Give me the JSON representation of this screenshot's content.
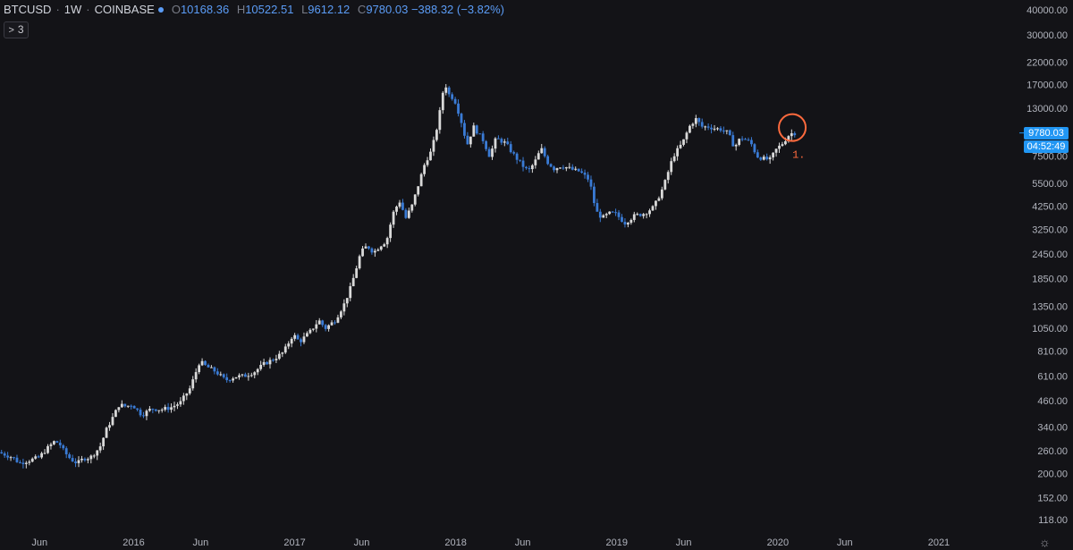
{
  "legend": {
    "symbol": "BTCUSD",
    "interval": "1W",
    "exchange": "COINBASE",
    "open_label": "O",
    "open": "10168.36",
    "high_label": "H",
    "high": "10522.51",
    "low_label": "L",
    "low": "9612.12",
    "close_label": "C",
    "close": "9780.03",
    "change": "−388.32 (−3.82%)"
  },
  "indicators_toggle": {
    "chevron": ">",
    "count": "3"
  },
  "price_tag": {
    "price": "9780.03",
    "countdown": "04:52:49"
  },
  "annotation": {
    "label": "1."
  },
  "colors": {
    "background": "#131317",
    "up_candle": "#d9d9d9",
    "down_candle": "#3a7bd5",
    "price_tag": "#2196f3",
    "annotation": "#ff6a3d"
  },
  "chart_data": {
    "type": "candlestick",
    "interval": "weekly",
    "scale": "log",
    "ylim": [
      110,
      42000
    ],
    "y_ticks": [
      "40000.00",
      "30000.00",
      "22000.00",
      "17000.00",
      "13000.00",
      "10000.00",
      "7500.00",
      "5500.00",
      "4250.00",
      "3250.00",
      "2450.00",
      "1850.00",
      "1350.00",
      "1050.00",
      "810.00",
      "610.00",
      "460.00",
      "340.00",
      "260.00",
      "200.00",
      "152.00",
      "118.00"
    ],
    "x_ticks": [
      {
        "label": "Jun",
        "t": 2015.416
      },
      {
        "label": "2016",
        "t": 2016.0
      },
      {
        "label": "Jun",
        "t": 2016.416
      },
      {
        "label": "2017",
        "t": 2017.0
      },
      {
        "label": "Jun",
        "t": 2017.416
      },
      {
        "label": "2018",
        "t": 2018.0
      },
      {
        "label": "Jun",
        "t": 2018.416
      },
      {
        "label": "2019",
        "t": 2019.0
      },
      {
        "label": "Jun",
        "t": 2019.416
      },
      {
        "label": "2020",
        "t": 2020.0
      },
      {
        "label": "Jun",
        "t": 2020.416
      },
      {
        "label": "2021",
        "t": 2021.0
      }
    ],
    "x_range": [
      2015.17,
      2021.5
    ],
    "price_path": [
      [
        2015.17,
        255
      ],
      [
        2015.26,
        240
      ],
      [
        2015.3,
        225
      ],
      [
        2015.38,
        235
      ],
      [
        2015.42,
        240
      ],
      [
        2015.48,
        270
      ],
      [
        2015.52,
        290
      ],
      [
        2015.55,
        280
      ],
      [
        2015.58,
        255
      ],
      [
        2015.62,
        235
      ],
      [
        2015.66,
        225
      ],
      [
        2015.7,
        238
      ],
      [
        2015.74,
        240
      ],
      [
        2015.8,
        270
      ],
      [
        2015.84,
        330
      ],
      [
        2015.88,
        380
      ],
      [
        2015.92,
        440
      ],
      [
        2015.96,
        430
      ],
      [
        2016.0,
        440
      ],
      [
        2016.06,
        390
      ],
      [
        2016.12,
        420
      ],
      [
        2016.18,
        415
      ],
      [
        2016.24,
        425
      ],
      [
        2016.3,
        450
      ],
      [
        2016.36,
        530
      ],
      [
        2016.42,
        720
      ],
      [
        2016.46,
        680
      ],
      [
        2016.52,
        640
      ],
      [
        2016.58,
        580
      ],
      [
        2016.64,
        605
      ],
      [
        2016.7,
        610
      ],
      [
        2016.76,
        640
      ],
      [
        2016.82,
        700
      ],
      [
        2016.88,
        740
      ],
      [
        2016.94,
        800
      ],
      [
        2017.0,
        980
      ],
      [
        2017.04,
        900
      ],
      [
        2017.1,
        1000
      ],
      [
        2017.16,
        1150
      ],
      [
        2017.2,
        1050
      ],
      [
        2017.26,
        1150
      ],
      [
        2017.32,
        1400
      ],
      [
        2017.36,
        1700
      ],
      [
        2017.42,
        2500
      ],
      [
        2017.46,
        2700
      ],
      [
        2017.5,
        2500
      ],
      [
        2017.54,
        2700
      ],
      [
        2017.58,
        2850
      ],
      [
        2017.62,
        3900
      ],
      [
        2017.66,
        4500
      ],
      [
        2017.7,
        3700
      ],
      [
        2017.74,
        4300
      ],
      [
        2017.78,
        5500
      ],
      [
        2017.82,
        7000
      ],
      [
        2017.86,
        8000
      ],
      [
        2017.9,
        11000
      ],
      [
        2017.94,
        17500
      ],
      [
        2017.97,
        15000
      ],
      [
        2018.0,
        14500
      ],
      [
        2018.04,
        11500
      ],
      [
        2018.08,
        8500
      ],
      [
        2018.12,
        10500
      ],
      [
        2018.18,
        9000
      ],
      [
        2018.22,
        7500
      ],
      [
        2018.26,
        9200
      ],
      [
        2018.32,
        8700
      ],
      [
        2018.36,
        7800
      ],
      [
        2018.42,
        6800
      ],
      [
        2018.46,
        6300
      ],
      [
        2018.5,
        7000
      ],
      [
        2018.54,
        8200
      ],
      [
        2018.58,
        7000
      ],
      [
        2018.62,
        6500
      ],
      [
        2018.66,
        6700
      ],
      [
        2018.7,
        6600
      ],
      [
        2018.74,
        6400
      ],
      [
        2018.78,
        6300
      ],
      [
        2018.84,
        5700
      ],
      [
        2018.88,
        4000
      ],
      [
        2018.92,
        3700
      ],
      [
        2018.96,
        3900
      ],
      [
        2019.0,
        3900
      ],
      [
        2019.06,
        3500
      ],
      [
        2019.12,
        3800
      ],
      [
        2019.18,
        3900
      ],
      [
        2019.24,
        4200
      ],
      [
        2019.3,
        5300
      ],
      [
        2019.36,
        7500
      ],
      [
        2019.42,
        8800
      ],
      [
        2019.46,
        10500
      ],
      [
        2019.5,
        11500
      ],
      [
        2019.54,
        10500
      ],
      [
        2019.58,
        10500
      ],
      [
        2019.62,
        10300
      ],
      [
        2019.66,
        10200
      ],
      [
        2019.7,
        9800
      ],
      [
        2019.74,
        8300
      ],
      [
        2019.78,
        9300
      ],
      [
        2019.84,
        8800
      ],
      [
        2019.88,
        7500
      ],
      [
        2019.92,
        7300
      ],
      [
        2019.96,
        7200
      ],
      [
        2020.0,
        8100
      ],
      [
        2020.04,
        8700
      ],
      [
        2020.08,
        9600
      ],
      [
        2020.1,
        9780
      ]
    ],
    "annotation_circle_t": 2020.09
  }
}
